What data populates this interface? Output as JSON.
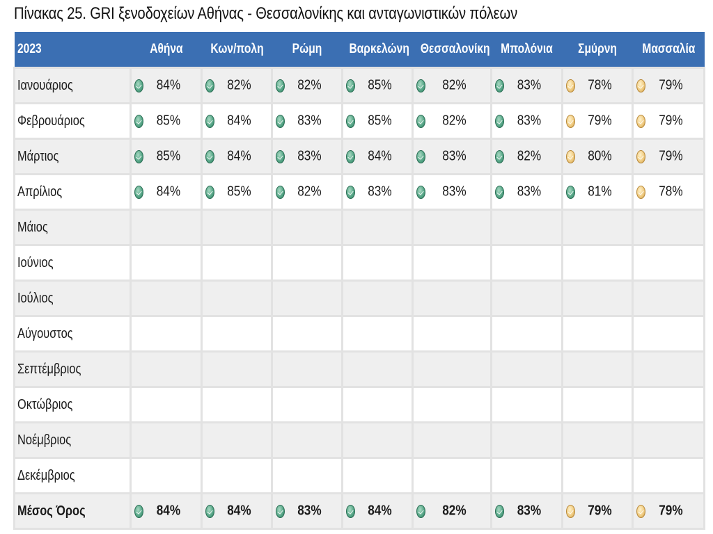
{
  "title": "Πίνακας 25. GRI ξενοδοχείων Αθήνας - Θεσσαλονίκης και ανταγωνιστικών πόλεων",
  "colors": {
    "header_bg": "#3b6fb3",
    "header_text": "#ffffff",
    "good": "#5aa98a",
    "warn": "#f1cd84",
    "alt_row": "#efefef",
    "grid": "#e2e2e2"
  },
  "table": {
    "year_header": "2023",
    "columns": [
      "Αθήνα",
      "Κων/πολη",
      "Ρώμη",
      "Βαρκελώνη",
      "Θεσσαλονίκη",
      "Μπολόνια",
      "Σμύρνη",
      "Μασσαλία"
    ],
    "rows": [
      {
        "month": "Ιανουάριος",
        "cells": [
          {
            "v": "84%",
            "s": "green"
          },
          {
            "v": "82%",
            "s": "green"
          },
          {
            "v": "82%",
            "s": "green"
          },
          {
            "v": "85%",
            "s": "green"
          },
          {
            "v": "82%",
            "s": "green"
          },
          {
            "v": "83%",
            "s": "green"
          },
          {
            "v": "78%",
            "s": "amber"
          },
          {
            "v": "79%",
            "s": "amber"
          }
        ]
      },
      {
        "month": "Φεβρουάριος",
        "cells": [
          {
            "v": "85%",
            "s": "green"
          },
          {
            "v": "84%",
            "s": "green"
          },
          {
            "v": "83%",
            "s": "green"
          },
          {
            "v": "85%",
            "s": "green"
          },
          {
            "v": "82%",
            "s": "green"
          },
          {
            "v": "83%",
            "s": "green"
          },
          {
            "v": "79%",
            "s": "amber"
          },
          {
            "v": "79%",
            "s": "amber"
          }
        ]
      },
      {
        "month": "Μάρτιος",
        "cells": [
          {
            "v": "85%",
            "s": "green"
          },
          {
            "v": "84%",
            "s": "green"
          },
          {
            "v": "83%",
            "s": "green"
          },
          {
            "v": "84%",
            "s": "green"
          },
          {
            "v": "83%",
            "s": "green"
          },
          {
            "v": "82%",
            "s": "green"
          },
          {
            "v": "80%",
            "s": "amber"
          },
          {
            "v": "79%",
            "s": "amber"
          }
        ]
      },
      {
        "month": "Απρίλιος",
        "cells": [
          {
            "v": "84%",
            "s": "green"
          },
          {
            "v": "85%",
            "s": "green"
          },
          {
            "v": "82%",
            "s": "green"
          },
          {
            "v": "83%",
            "s": "green"
          },
          {
            "v": "83%",
            "s": "green"
          },
          {
            "v": "83%",
            "s": "green"
          },
          {
            "v": "81%",
            "s": "green"
          },
          {
            "v": "78%",
            "s": "amber"
          }
        ]
      },
      {
        "month": "Μάιος",
        "cells": []
      },
      {
        "month": "Ιούνιος",
        "cells": []
      },
      {
        "month": "Ιούλιος",
        "cells": []
      },
      {
        "month": "Αύγουστος",
        "cells": []
      },
      {
        "month": "Σεπτέμβριος",
        "cells": []
      },
      {
        "month": "Οκτώβριος",
        "cells": []
      },
      {
        "month": "Νοέμβριος",
        "cells": []
      },
      {
        "month": "Δεκέμβριος",
        "cells": []
      }
    ],
    "average": {
      "label": "Μέσος Όρος",
      "cells": [
        {
          "v": "84%",
          "s": "green"
        },
        {
          "v": "84%",
          "s": "green"
        },
        {
          "v": "83%",
          "s": "green"
        },
        {
          "v": "84%",
          "s": "green"
        },
        {
          "v": "82%",
          "s": "green"
        },
        {
          "v": "83%",
          "s": "green"
        },
        {
          "v": "79%",
          "s": "amber"
        },
        {
          "v": "79%",
          "s": "amber"
        }
      ]
    }
  }
}
